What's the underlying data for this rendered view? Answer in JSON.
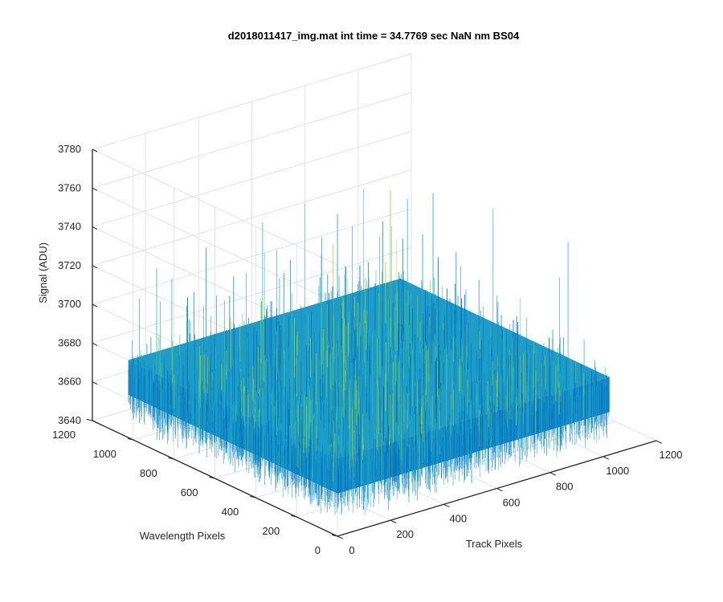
{
  "chart_data": {
    "type": "surface",
    "title": "d2018011417_img.mat int time = 34.7769 sec  NaN nm BS04",
    "xlabel": "Track Pixels",
    "ylabel": "Wavelength Pixels",
    "zlabel": "Signal (ADU)",
    "xlim": [
      0,
      1200
    ],
    "ylim": [
      0,
      1200
    ],
    "zlim": [
      3640,
      3780
    ],
    "xticks": [
      "0",
      "200",
      "400",
      "600",
      "800",
      "1000",
      "1200"
    ],
    "yticks": [
      "0",
      "200",
      "400",
      "600",
      "800",
      "1000",
      "1200"
    ],
    "zticks": [
      "3640",
      "3660",
      "3680",
      "3700",
      "3720",
      "3740",
      "3760",
      "3780"
    ],
    "data_extent": {
      "x": [
        0,
        1024
      ],
      "y": [
        0,
        1024
      ]
    },
    "signal_mean": 3672,
    "signal_noise_range": [
      3645,
      3745
    ],
    "grid": true,
    "colormap": "parula",
    "colors": {
      "low": "#0072bd",
      "mid": "#1aa0c8",
      "high": "#3cbf9a",
      "peak": "#9acd32"
    }
  }
}
